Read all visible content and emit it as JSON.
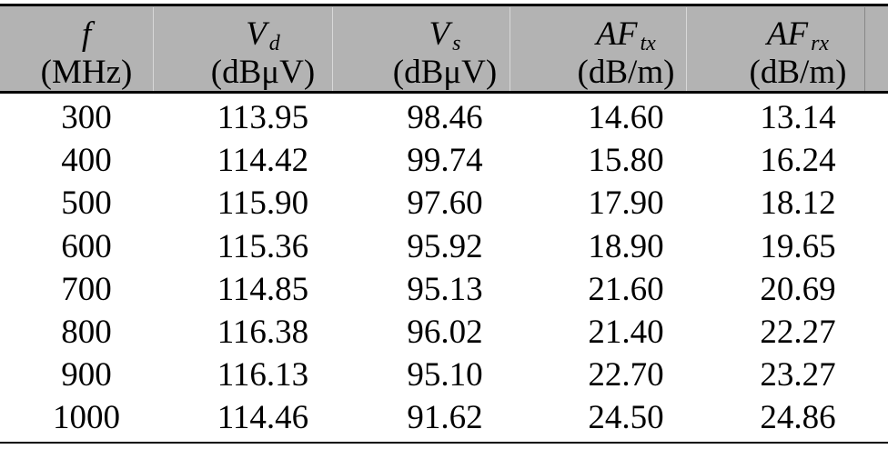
{
  "table": {
    "columns": [
      {
        "symbol": "f",
        "unit": "(MHz)"
      },
      {
        "symbol": "V",
        "subscript": "d",
        "unit": "(dBμV)"
      },
      {
        "symbol": "V",
        "subscript": "s",
        "unit": "(dBμV)"
      },
      {
        "symbol": "AF",
        "subscript": "tx",
        "unit": "(dB/m)"
      },
      {
        "symbol": "AF",
        "subscript": "rx",
        "unit": "(dB/m)"
      }
    ],
    "rows": [
      [
        "300",
        "113.95",
        "98.46",
        "14.60",
        "13.14"
      ],
      [
        "400",
        "114.42",
        "99.74",
        "15.80",
        "16.24"
      ],
      [
        "500",
        "115.90",
        "97.60",
        "17.90",
        "18.12"
      ],
      [
        "600",
        "115.36",
        "95.92",
        "18.90",
        "19.65"
      ],
      [
        "700",
        "114.85",
        "95.13",
        "21.60",
        "20.69"
      ],
      [
        "800",
        "116.38",
        "96.02",
        "21.40",
        "22.27"
      ],
      [
        "900",
        "116.13",
        "95.10",
        "22.70",
        "23.27"
      ],
      [
        "1000",
        "114.46",
        "91.62",
        "24.50",
        "24.86"
      ]
    ]
  }
}
